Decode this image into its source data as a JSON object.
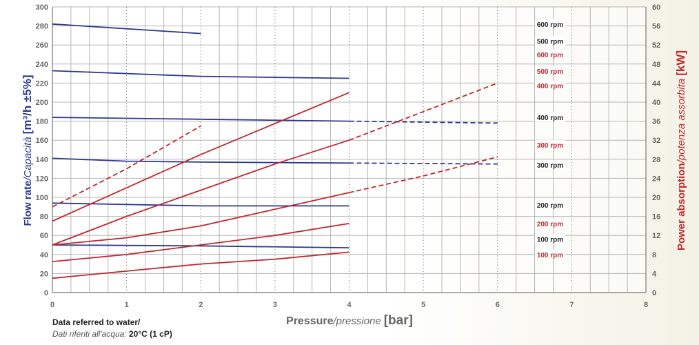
{
  "chart_data": {
    "type": "line",
    "xlabel_main": "Pressure",
    "xlabel_italic": "/pressione",
    "xlabel_unit": "[bar]",
    "ylabel_left_main": "Flow rate",
    "ylabel_left_italic": "/Capacità",
    "ylabel_left_unit": "[m³/h ±5%]",
    "ylabel_right_main": "Power absorption",
    "ylabel_right_italic": "/potenza assorbita",
    "ylabel_right_unit": "[kW]",
    "xlim": [
      0,
      8
    ],
    "ylim_left": [
      0,
      300
    ],
    "ylim_right": [
      0,
      60
    ],
    "x_ticks": [
      "0",
      "1",
      "2",
      "3",
      "4",
      "5",
      "6",
      "7",
      "8"
    ],
    "y_left_ticks": [
      "0",
      "20",
      "40",
      "60",
      "80",
      "100",
      "120",
      "140",
      "160",
      "180",
      "200",
      "220",
      "240",
      "260",
      "280",
      "300"
    ],
    "y_right_ticks": [
      "0",
      "4",
      "8",
      "12",
      "16",
      "20",
      "24",
      "28",
      "32",
      "36",
      "40",
      "44",
      "48",
      "52",
      "56",
      "60"
    ],
    "grid": true,
    "colors": {
      "flow": "#2b3990",
      "power": "#c1272d",
      "grid": "#b5b5b5",
      "axis_text": "#666666"
    },
    "flow_series": [
      {
        "name": "600 rpm",
        "solid": [
          [
            0,
            282
          ],
          [
            2,
            272
          ]
        ],
        "dashed": []
      },
      {
        "name": "500 rpm",
        "solid": [
          [
            0,
            233
          ],
          [
            1,
            230
          ],
          [
            2,
            227
          ],
          [
            3,
            226
          ],
          [
            4,
            225
          ]
        ],
        "dashed": []
      },
      {
        "name": "400 rpm",
        "solid": [
          [
            0,
            184
          ],
          [
            2,
            182
          ],
          [
            4,
            180
          ]
        ],
        "dashed": [
          [
            4,
            180
          ],
          [
            6,
            178
          ]
        ]
      },
      {
        "name": "300 rpm",
        "solid": [
          [
            0,
            141
          ],
          [
            1,
            138
          ],
          [
            2,
            137
          ],
          [
            4,
            136
          ]
        ],
        "dashed": [
          [
            4,
            136
          ],
          [
            6,
            135
          ]
        ]
      },
      {
        "name": "200 rpm",
        "solid": [
          [
            0,
            94
          ],
          [
            2,
            91
          ],
          [
            4,
            91
          ]
        ],
        "dashed": []
      },
      {
        "name": "100 rpm",
        "solid": [
          [
            0,
            50
          ],
          [
            2,
            49
          ],
          [
            4,
            47
          ]
        ],
        "dashed": []
      }
    ],
    "power_series": [
      {
        "name": "600 rpm",
        "solid": [],
        "dashed": [
          [
            0,
            18
          ],
          [
            1,
            26
          ],
          [
            2,
            35
          ]
        ]
      },
      {
        "name": "500 rpm",
        "solid": [
          [
            0,
            15
          ],
          [
            1,
            22
          ],
          [
            2,
            29
          ],
          [
            3,
            35.5
          ],
          [
            4,
            42
          ]
        ],
        "dashed": []
      },
      {
        "name": "400 rpm",
        "solid": [
          [
            0,
            10
          ],
          [
            1,
            16
          ],
          [
            2,
            21.5
          ],
          [
            3,
            27
          ],
          [
            4,
            32
          ]
        ],
        "dashed": [
          [
            4,
            32
          ],
          [
            5,
            38
          ],
          [
            6,
            44
          ]
        ]
      },
      {
        "name": "300 rpm",
        "solid": [
          [
            0,
            10
          ],
          [
            1,
            11.5
          ],
          [
            2,
            14
          ],
          [
            3,
            17.5
          ],
          [
            4,
            21
          ]
        ],
        "dashed": [
          [
            4,
            21
          ],
          [
            5,
            24.5
          ],
          [
            6,
            28.5
          ]
        ]
      },
      {
        "name": "200 rpm",
        "solid": [
          [
            0,
            6.5
          ],
          [
            1,
            8
          ],
          [
            2,
            10
          ],
          [
            3,
            12
          ],
          [
            4,
            14.5
          ]
        ],
        "dashed": []
      },
      {
        "name": "100 rpm",
        "solid": [
          [
            0,
            3
          ],
          [
            1,
            4.5
          ],
          [
            2,
            6
          ],
          [
            3,
            7
          ],
          [
            4,
            8.5
          ]
        ],
        "dashed": []
      }
    ],
    "labels": [
      {
        "text": "600 rpm",
        "series": "flow",
        "ref_y": 282
      },
      {
        "text": "500 rpm",
        "series": "flow",
        "ref_y": 264
      },
      {
        "text": "600 rpm",
        "series": "power",
        "ref_y": 50
      },
      {
        "text": "500 rpm",
        "series": "power",
        "ref_y": 46.5
      },
      {
        "text": "400 rpm",
        "series": "power",
        "ref_y": 43.5
      },
      {
        "text": "400 rpm",
        "series": "flow",
        "ref_y": 184
      },
      {
        "text": "300 rpm",
        "series": "power",
        "ref_y": 31
      },
      {
        "text": "300 rpm",
        "series": "flow",
        "ref_y": 134
      },
      {
        "text": "200 rpm",
        "series": "flow",
        "ref_y": 92
      },
      {
        "text": "200 rpm",
        "series": "power",
        "ref_y": 14.5
      },
      {
        "text": "100 rpm",
        "series": "flow",
        "ref_y": 56
      },
      {
        "text": "100 rpm",
        "series": "power",
        "ref_y": 8
      }
    ]
  },
  "note": {
    "line1": "Data referred to water/",
    "line2_italic": "Dati riferiti all'acqua: ",
    "line2_bold": "20°C (1 cP)"
  }
}
